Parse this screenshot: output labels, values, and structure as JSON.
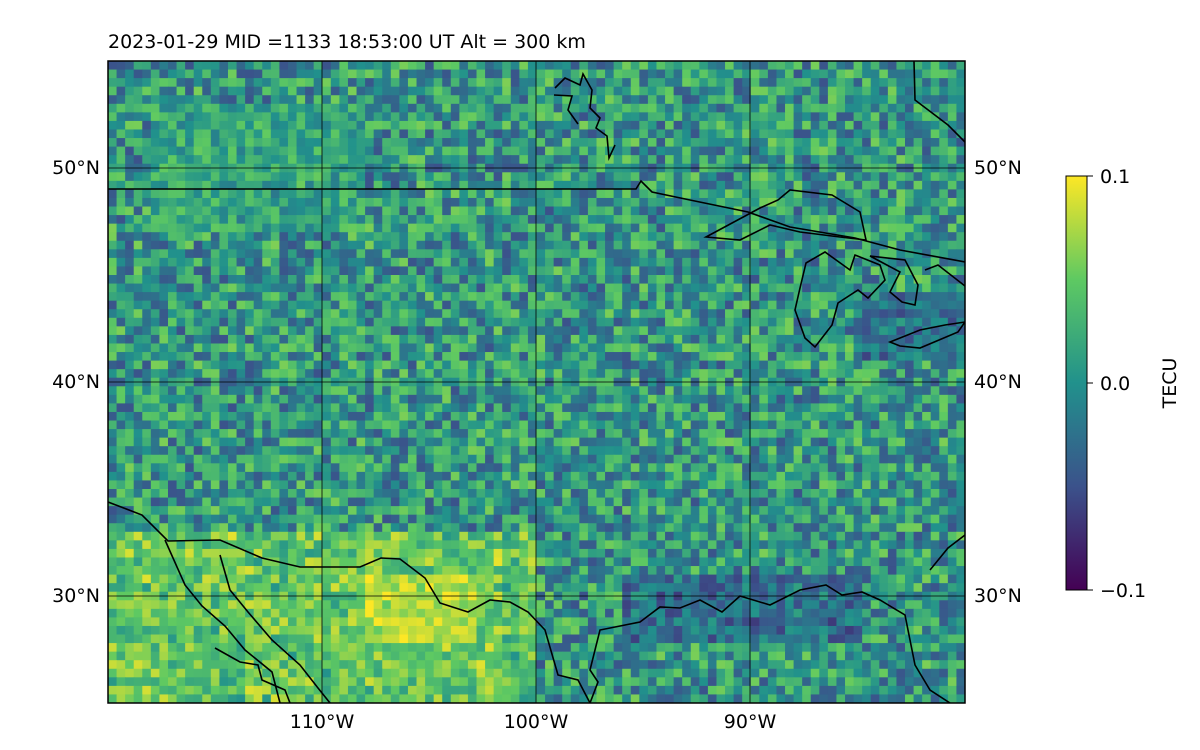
{
  "figure": {
    "title": "2023-01-29  MID =1133    18:53:00  UT  Alt = 300 km"
  },
  "map": {
    "lon_range": [
      -120,
      -80
    ],
    "lat_range": [
      25,
      55
    ],
    "graticule_lons": [
      -110,
      -100,
      -90
    ],
    "graticule_lats": [
      30,
      40,
      50
    ],
    "lon_tick_labels": [
      "110°W",
      "100°W",
      "90°W"
    ],
    "lat_tick_labels": [
      "30°N",
      "40°N",
      "50°N"
    ],
    "grid": true
  },
  "colorbar": {
    "label": "TECU",
    "min": -0.1,
    "max": 0.1,
    "tick_labels": [
      "0.1",
      "0.0",
      "−0.1"
    ],
    "colormap": [
      "#440154",
      "#3b528b",
      "#21918c",
      "#5ec962",
      "#fde725"
    ]
  },
  "chart_data": {
    "type": "heatmap",
    "variable": "TECU",
    "value_range": [
      -0.1,
      0.1
    ],
    "x_axis_tick_labels": [
      "110°W",
      "100°W",
      "90°W"
    ],
    "y_axis_tick_labels": [
      "30°N",
      "40°N",
      "50°N"
    ],
    "grid": true,
    "features": [
      {
        "region_lon": [
          -120,
          -100
        ],
        "region_lat": [
          25,
          33
        ],
        "level": 0.09
      },
      {
        "region_lon": [
          -108,
          -103
        ],
        "region_lat": [
          28,
          31
        ],
        "level": 0.1
      },
      {
        "region_lon": [
          -118,
          -108
        ],
        "region_lat": [
          47,
          53
        ],
        "level": 0.03
      },
      {
        "region_lon": [
          -96,
          -85
        ],
        "region_lat": [
          28,
          31
        ],
        "level": -0.06
      },
      {
        "region_lon": [
          -85,
          -80
        ],
        "region_lat": [
          41,
          44
        ],
        "level": -0.05
      }
    ]
  }
}
